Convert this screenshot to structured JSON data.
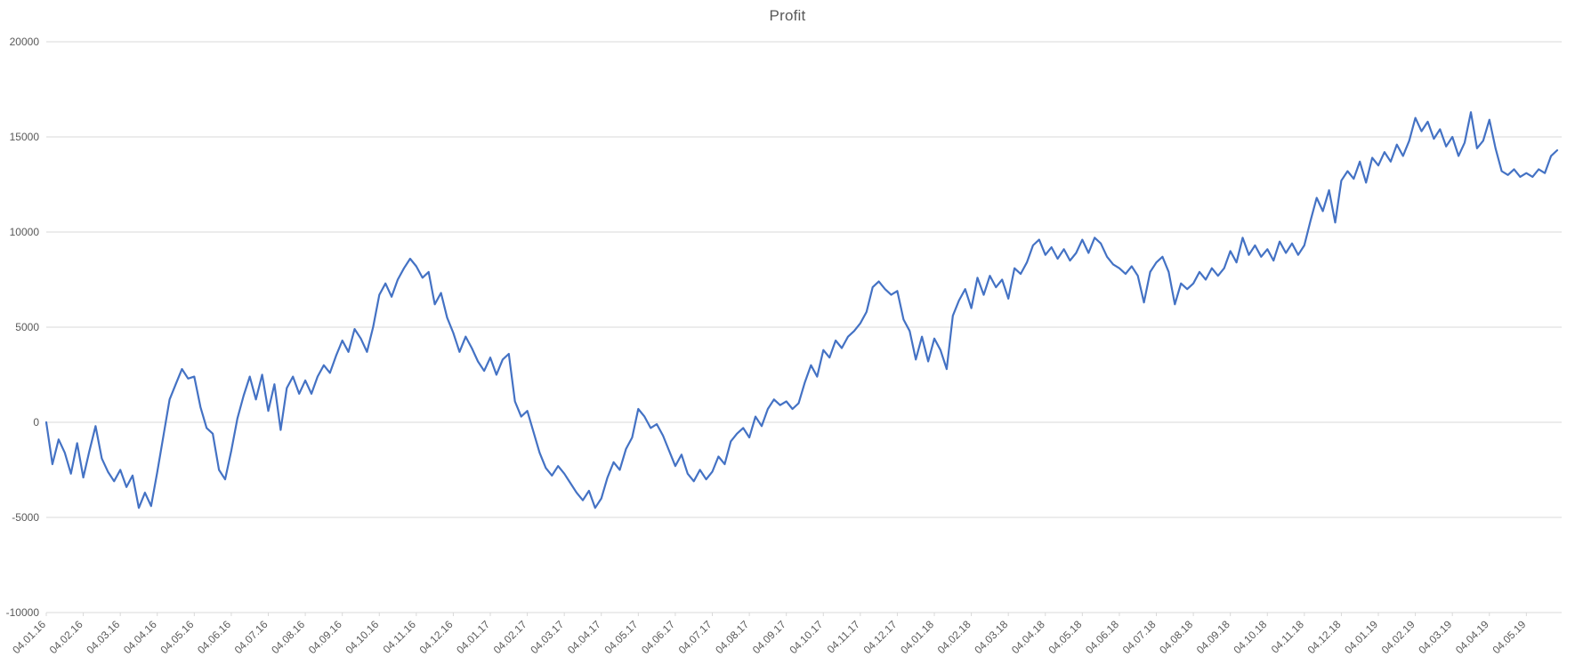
{
  "colors": {
    "line": "#4472C4",
    "grid": "#D9D9D9",
    "axis_text": "#595959",
    "background": "#FFFFFF"
  },
  "chart_data": {
    "type": "line",
    "title": "Profit",
    "xlabel": "",
    "ylabel": "",
    "ylim": [
      -10000,
      20000
    ],
    "ytick_interval": 5000,
    "ytick_labels": [
      "-10000",
      "-5000",
      "0",
      "5000",
      "10000",
      "15000",
      "20000"
    ],
    "grid": "horizontal",
    "legend": "none",
    "points_per_category": 6,
    "categories": [
      "04.01.16",
      "04.02.16",
      "04.03.16",
      "04.04.16",
      "04.05.16",
      "04.06.16",
      "04.07.16",
      "04.08.16",
      "04.09.16",
      "04.10.16",
      "04.11.16",
      "04.12.16",
      "04.01.17",
      "04.02.17",
      "04.03.17",
      "04.04.17",
      "04.05.17",
      "04.06.17",
      "04.07.17",
      "04.08.17",
      "04.09.17",
      "04.10.17",
      "04.11.17",
      "04.12.17",
      "04.01.18",
      "04.02.18",
      "04.03.18",
      "04.04.18",
      "04.05.18",
      "04.06.18",
      "04.07.18",
      "04.08.18",
      "04.09.18",
      "04.10.18",
      "04.11.18",
      "04.12.18",
      "04.01.19",
      "04.02.19",
      "04.03.19",
      "04.04.19",
      "04.05.19"
    ],
    "values": [
      0,
      -2200,
      -900,
      -1600,
      -2700,
      -1100,
      -2900,
      -1500,
      -200,
      -1900,
      -2600,
      -3100,
      -2500,
      -3400,
      -2800,
      -4500,
      -3700,
      -4400,
      -2600,
      -700,
      1200,
      2000,
      2800,
      2300,
      2400,
      800,
      -300,
      -600,
      -2500,
      -3000,
      -1500,
      200,
      1400,
      2400,
      1200,
      2500,
      600,
      2000,
      -400,
      1800,
      2400,
      1500,
      2200,
      1500,
      2400,
      3000,
      2600,
      3500,
      4300,
      3700,
      4900,
      4400,
      3700,
      5000,
      6700,
      7300,
      6600,
      7500,
      8100,
      8600,
      8200,
      7600,
      7900,
      6200,
      6800,
      5500,
      4700,
      3700,
      4500,
      3900,
      3200,
      2700,
      3400,
      2500,
      3300,
      3600,
      1100,
      300,
      600,
      -500,
      -1600,
      -2400,
      -2800,
      -2300,
      -2700,
      -3200,
      -3700,
      -4100,
      -3600,
      -4500,
      -4000,
      -2900,
      -2100,
      -2500,
      -1400,
      -800,
      700,
      300,
      -300,
      -100,
      -700,
      -1500,
      -2300,
      -1700,
      -2700,
      -3100,
      -2500,
      -3000,
      -2600,
      -1800,
      -2200,
      -1000,
      -600,
      -300,
      -800,
      300,
      -200,
      700,
      1200,
      900,
      1100,
      700,
      1000,
      2100,
      3000,
      2400,
      3800,
      3400,
      4300,
      3900,
      4500,
      4800,
      5200,
      5800,
      7100,
      7400,
      7000,
      6700,
      6900,
      5400,
      4800,
      3300,
      4500,
      3200,
      4400,
      3800,
      2800,
      5600,
      6400,
      7000,
      6000,
      7600,
      6700,
      7700,
      7100,
      7500,
      6500,
      8100,
      7800,
      8400,
      9300,
      9600,
      8800,
      9200,
      8600,
      9100,
      8500,
      8900,
      9600,
      8900,
      9700,
      9400,
      8700,
      8300,
      8100,
      7800,
      8200,
      7700,
      6300,
      7900,
      8400,
      8700,
      7900,
      6200,
      7300,
      7000,
      7300,
      7900,
      7500,
      8100,
      7700,
      8100,
      9000,
      8400,
      9700,
      8800,
      9300,
      8700,
      9100,
      8500,
      9500,
      8900,
      9400,
      8800,
      9300,
      10600,
      11800,
      11100,
      12200,
      10500,
      12700,
      13200,
      12800,
      13700,
      12600,
      13900,
      13500,
      14200,
      13700,
      14600,
      14000,
      14800,
      16000,
      15300,
      15800,
      14900,
      15400,
      14500,
      15000,
      14000,
      14700,
      16300,
      14400,
      14800,
      15900,
      14400,
      13200,
      13000,
      13300,
      12900,
      13100,
      12900,
      13300,
      13100,
      14000,
      14300
    ]
  }
}
